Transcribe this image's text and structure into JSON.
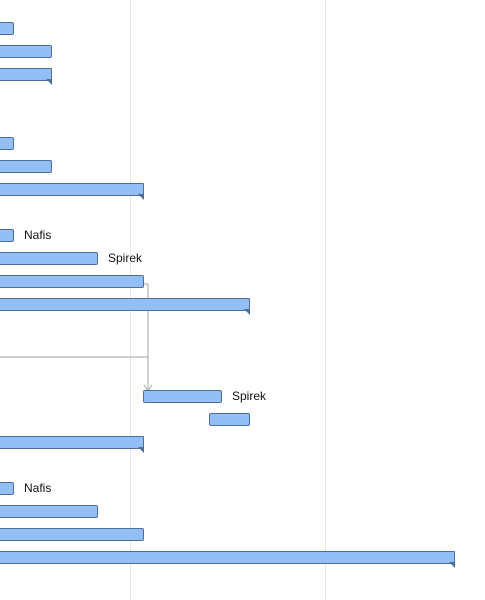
{
  "gantt": {
    "bar_color": "#94bef6",
    "bar_border_color": "#4f6f9b",
    "gridline_color": "#e6e6e6",
    "dependency_line_color": "#a6a6a6",
    "resource_labels": {
      "row_9": "Nafis",
      "row_10": "Spirek",
      "row_16": "Spirek",
      "row_20": "Nafis"
    }
  }
}
